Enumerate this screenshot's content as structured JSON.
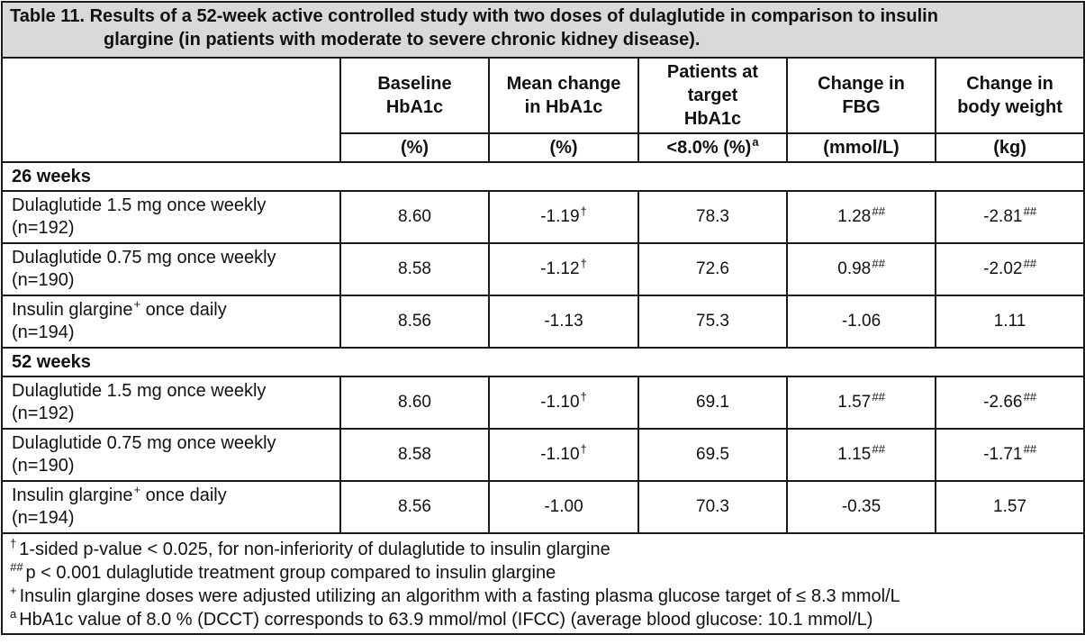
{
  "title": {
    "line1": "Table 11. Results of a 52-week active controlled study with two doses of dulaglutide in comparison to insulin",
    "line2": "glargine (in patients with moderate to severe chronic kidney disease)."
  },
  "columns": [
    {
      "header": "Baseline HbA1c",
      "unit": "(%)"
    },
    {
      "header": "Mean change in HbA1c",
      "unit": "(%)"
    },
    {
      "header": "Patients at target HbA1c",
      "unit": "<8.0% (%)",
      "unit_sup": "a"
    },
    {
      "header": "Change in FBG",
      "unit": "(mmol/L)"
    },
    {
      "header": "Change in body weight",
      "unit": "(kg)"
    }
  ],
  "sections": [
    {
      "label": "26 weeks",
      "rows": [
        {
          "line1": "Dulaglutide 1.5 mg once weekly",
          "line2": "(n=192)",
          "baseline": "8.60",
          "mean_change": "-1.19",
          "mean_change_sup": "†",
          "target": "78.3",
          "fbg": "1.28",
          "fbg_sup": "##",
          "weight": "-2.81",
          "weight_sup": "##"
        },
        {
          "line1": "Dulaglutide 0.75 mg once weekly",
          "line2": "(n=190)",
          "baseline": "8.58",
          "mean_change": "-1.12",
          "mean_change_sup": "†",
          "target": "72.6",
          "fbg": "0.98",
          "fbg_sup": "##",
          "weight": "-2.02",
          "weight_sup": "##"
        },
        {
          "line1": "Insulin glargine",
          "line1_sup": "+",
          "line1_after": " once daily",
          "line2": "(n=194)",
          "baseline": "8.56",
          "mean_change": "-1.13",
          "target": "75.3",
          "fbg": "-1.06",
          "weight": "1.11"
        }
      ]
    },
    {
      "label": "52 weeks",
      "rows": [
        {
          "line1": "Dulaglutide 1.5 mg once weekly",
          "line2": "(n=192)",
          "baseline": "8.60",
          "mean_change": "-1.10",
          "mean_change_sup": "†",
          "target": "69.1",
          "fbg": "1.57",
          "fbg_sup": "##",
          "weight": "-2.66",
          "weight_sup": "##"
        },
        {
          "line1": "Dulaglutide 0.75 mg once weekly",
          "line2": "(n=190)",
          "baseline": "8.58",
          "mean_change": "-1.10",
          "mean_change_sup": "†",
          "target": "69.5",
          "fbg": "1.15",
          "fbg_sup": "##",
          "weight": "-1.71",
          "weight_sup": "##"
        },
        {
          "line1": "Insulin glargine",
          "line1_sup": "+",
          "line1_after": " once daily",
          "line2": "(n=194)",
          "baseline": "8.56",
          "mean_change": "-1.00",
          "target": "70.3",
          "fbg": "-0.35",
          "weight": "1.57"
        }
      ]
    }
  ],
  "footnotes": [
    {
      "symbol": "†",
      "text": "1-sided p-value < 0.025, for non-inferiority of dulaglutide to insulin glargine"
    },
    {
      "symbol": "##",
      "text": "p < 0.001 dulaglutide treatment group compared to insulin glargine"
    },
    {
      "symbol": "+",
      "text": "Insulin glargine doses were adjusted utilizing an algorithm with a fasting plasma glucose target of ≤ 8.3 mmol/L"
    },
    {
      "symbol": "a",
      "text": "HbA1c value of 8.0 % (DCCT) corresponds to 63.9 mmol/mol (IFCC) (average blood glucose: 10.1 mmol/L)"
    }
  ]
}
